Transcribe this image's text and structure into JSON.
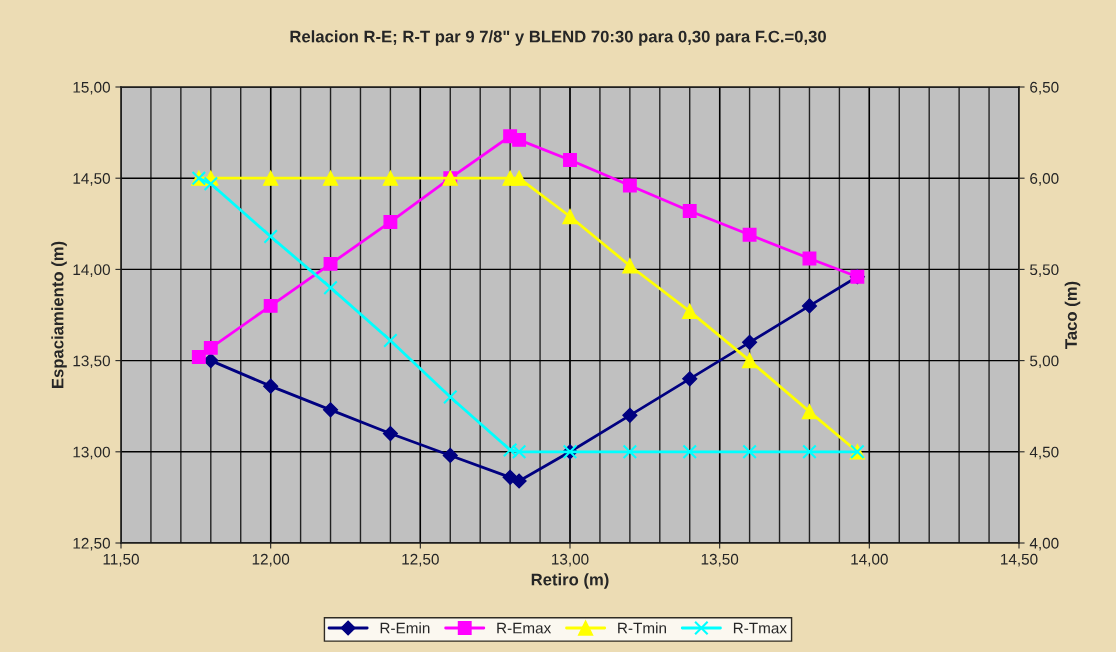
{
  "chart_data": {
    "type": "line",
    "title": "Relacion R-E; R-T par 9 7/8\" y BLEND 70:30 para 0,30 para F.C.=0,30",
    "xlabel": "Retiro (m)",
    "ylabel": "Espaciamiento (m)",
    "y2label": "Taco (m)",
    "xlim": [
      11.5,
      14.5
    ],
    "xticks": [
      {
        "value": 11.5,
        "label": "11,50"
      },
      {
        "value": 12.0,
        "label": "12,00"
      },
      {
        "value": 12.5,
        "label": "12,50"
      },
      {
        "value": 13.0,
        "label": "13,00"
      },
      {
        "value": 13.5,
        "label": "13,50"
      },
      {
        "value": 14.0,
        "label": "14,00"
      },
      {
        "value": 14.5,
        "label": "14,50"
      }
    ],
    "ylim": [
      12.5,
      15.0
    ],
    "yticks": [
      {
        "value": 12.5,
        "label": "12,50"
      },
      {
        "value": 13.0,
        "label": "13,00"
      },
      {
        "value": 13.5,
        "label": "13,50"
      },
      {
        "value": 14.0,
        "label": "14,00"
      },
      {
        "value": 14.5,
        "label": "14,50"
      },
      {
        "value": 15.0,
        "label": "15,00"
      }
    ],
    "y2lim": [
      4.0,
      6.5
    ],
    "y2ticks": [
      {
        "value": 4.0,
        "label": "4,00"
      },
      {
        "value": 4.5,
        "label": "4,50"
      },
      {
        "value": 5.0,
        "label": "5,00"
      },
      {
        "value": 5.5,
        "label": "5,50"
      },
      {
        "value": 6.0,
        "label": "6,00"
      },
      {
        "value": 6.5,
        "label": "6,50"
      }
    ],
    "grid": true,
    "legend": "bottom",
    "series": [
      {
        "name": "R-Emin",
        "color": "#000080",
        "marker": "diamond",
        "x": [
          11.8,
          12.0,
          12.2,
          12.4,
          12.6,
          12.8,
          12.83,
          13.0,
          13.2,
          13.4,
          13.6,
          13.8,
          13.96
        ],
        "values": [
          13.5,
          13.36,
          13.23,
          13.1,
          12.98,
          12.86,
          12.84,
          13.0,
          13.2,
          13.4,
          13.6,
          13.8,
          13.96
        ]
      },
      {
        "name": "R-Emax",
        "color": "#ff00ff",
        "marker": "square",
        "x": [
          11.76,
          11.8,
          12.0,
          12.2,
          12.4,
          12.6,
          12.8,
          12.83,
          13.0,
          13.2,
          13.4,
          13.6,
          13.8,
          13.96
        ],
        "values": [
          13.52,
          13.57,
          13.8,
          14.03,
          14.26,
          14.5,
          14.73,
          14.71,
          14.6,
          14.46,
          14.32,
          14.19,
          14.06,
          13.96
        ]
      },
      {
        "name": "R-Tmin",
        "color": "#ffff00",
        "marker": "triangle",
        "axis": "y2",
        "x": [
          11.76,
          11.8,
          12.0,
          12.2,
          12.4,
          12.6,
          12.8,
          12.83,
          13.0,
          13.2,
          13.4,
          13.6,
          13.8,
          13.96
        ],
        "values": [
          6.0,
          6.0,
          6.0,
          6.0,
          6.0,
          6.0,
          6.0,
          6.0,
          5.79,
          5.52,
          5.27,
          5.0,
          4.72,
          4.5
        ]
      },
      {
        "name": "R-Tmax",
        "color": "#00ffff",
        "marker": "cross",
        "axis": "y2",
        "x": [
          11.76,
          11.8,
          12.0,
          12.2,
          12.4,
          12.6,
          12.8,
          12.83,
          13.0,
          13.2,
          13.4,
          13.6,
          13.8,
          13.96
        ],
        "values": [
          6.0,
          5.97,
          5.68,
          5.4,
          5.11,
          4.8,
          4.51,
          4.5,
          4.5,
          4.5,
          4.5,
          4.5,
          4.5,
          4.5
        ]
      }
    ]
  }
}
